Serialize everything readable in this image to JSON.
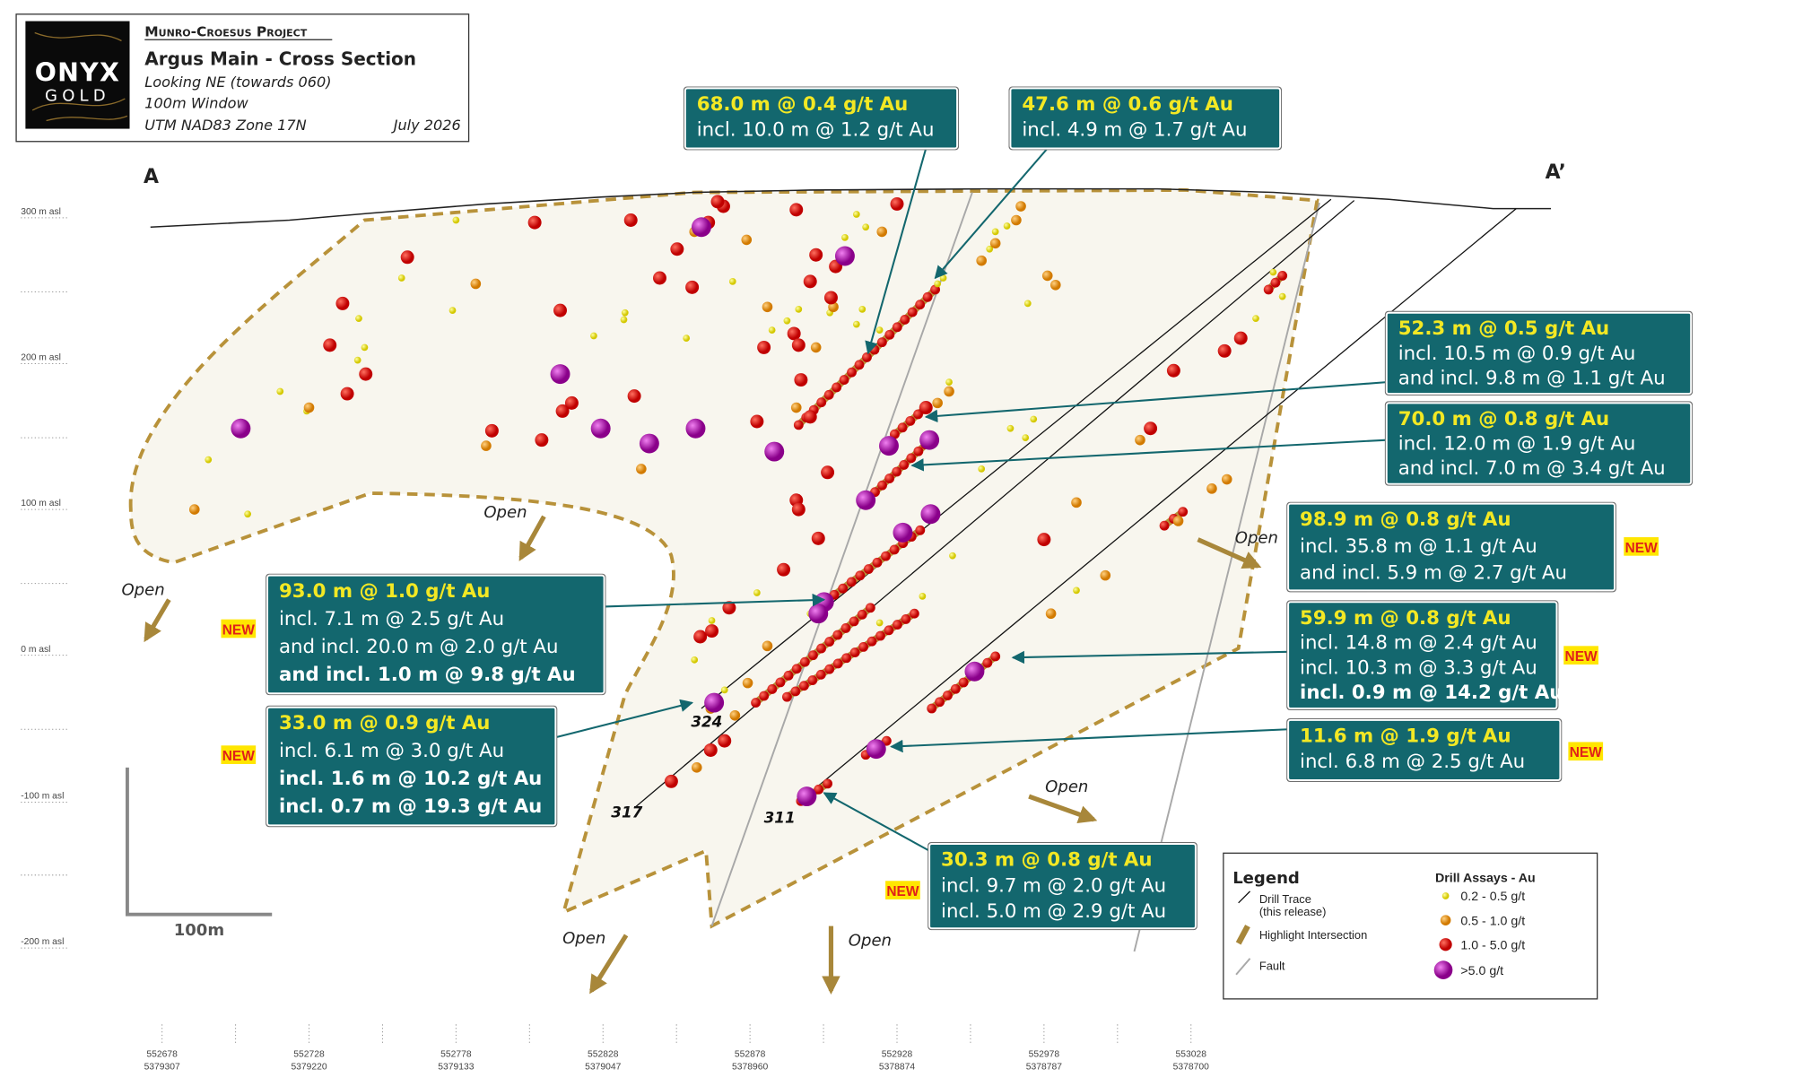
{
  "header": {
    "logo_top": "ONYX",
    "logo_bottom": "GOLD",
    "project": "Munro-Croesus Project",
    "title": "Argus Main - Cross Section",
    "lines": [
      "Looking NE (towards 060)",
      "100m Window",
      "UTM NAD83 Zone 17N"
    ],
    "date": "July 2026"
  },
  "section_ends": [
    "A",
    "A’"
  ],
  "elevations": [
    "300 m asl",
    "200 m asl",
    "100 m asl",
    "0 m asl",
    "-100 m asl",
    "-200 m asl"
  ],
  "callouts": [
    {
      "lines": [
        "68.0 m @ 0.4 g/t Au",
        "incl. 10.0 m @ 1.2 g/t Au"
      ]
    },
    {
      "lines": [
        "47.6 m @ 0.6 g/t Au",
        "incl. 4.9 m @ 1.7 g/t Au"
      ]
    },
    {
      "lines": [
        "52.3 m @ 0.5 g/t Au",
        "incl. 10.5 m @ 0.9 g/t Au",
        "and incl. 9.8 m @ 1.1 g/t Au"
      ]
    },
    {
      "lines": [
        "70.0 m @ 0.8 g/t Au",
        "incl. 12.0 m @ 1.9 g/t Au",
        "and incl. 7.0 m @ 3.4 g/t Au"
      ]
    },
    {
      "lines": [
        "98.9 m @ 0.8 g/t Au",
        "incl. 35.8 m @ 1.1 g/t Au",
        "and incl. 5.9 m @ 2.7 g/t Au"
      ],
      "tag": "NEW"
    },
    {
      "lines": [
        "59.9 m @ 0.8 g/t Au",
        "incl. 14.8 m @ 2.4 g/t Au",
        "incl. 10.3 m @ 3.3 g/t Au",
        "incl. 0.9 m @ 14.2 g/t Au"
      ],
      "tag": "NEW"
    },
    {
      "lines": [
        "11.6 m @ 1.9 g/t Au",
        "incl. 6.8 m @ 2.5 g/t Au"
      ],
      "tag": "NEW"
    },
    {
      "lines": [
        "93.0 m @ 1.0 g/t Au",
        "incl. 7.1 m @ 2.5 g/t Au",
        "and incl. 20.0 m @ 2.0 g/t Au",
        "and incl. 1.0 m @ 9.8 g/t Au"
      ],
      "tag": "NEW"
    },
    {
      "lines": [
        "33.0 m @ 0.9 g/t Au",
        "incl. 6.1 m @ 3.0 g/t Au",
        "incl. 1.6 m @ 10.2 g/t Au",
        "incl. 0.7 m @ 19.3 g/t Au"
      ],
      "tag": "NEW"
    },
    {
      "lines": [
        "30.3 m @ 0.8 g/t Au",
        "incl. 9.7 m @ 2.0 g/t Au",
        "incl. 5.0 m @ 2.9 g/t Au"
      ],
      "tag": "NEW"
    }
  ],
  "open_labels": [
    "Open",
    "Open",
    "Open",
    "Open",
    "Open",
    "Open"
  ],
  "drill_holes": [
    "324",
    "317",
    "311"
  ],
  "scale_bar": "100m",
  "legend": {
    "title": "Legend",
    "drill_trace": [
      "Drill Trace",
      "(this release)"
    ],
    "highlight": "Highlight Intersection",
    "fault": "Fault",
    "assays_title": "Drill Assays - Au",
    "assays": [
      "0.2 - 0.5 g/t",
      "0.5 - 1.0 g/t",
      "1.0 - 5.0 g/t",
      ">5.0 g/t"
    ]
  },
  "x_axis": [
    {
      "easting": "552678",
      "northing": "5379307"
    },
    {
      "easting": "552728",
      "northing": "5379220"
    },
    {
      "easting": "552778",
      "northing": "5379133"
    },
    {
      "easting": "552828",
      "northing": "5379047"
    },
    {
      "easting": "552878",
      "northing": "5378960"
    },
    {
      "easting": "552928",
      "northing": "5378874"
    },
    {
      "easting": "552978",
      "northing": "5378787"
    },
    {
      "easting": "553028",
      "northing": "5378700"
    }
  ]
}
